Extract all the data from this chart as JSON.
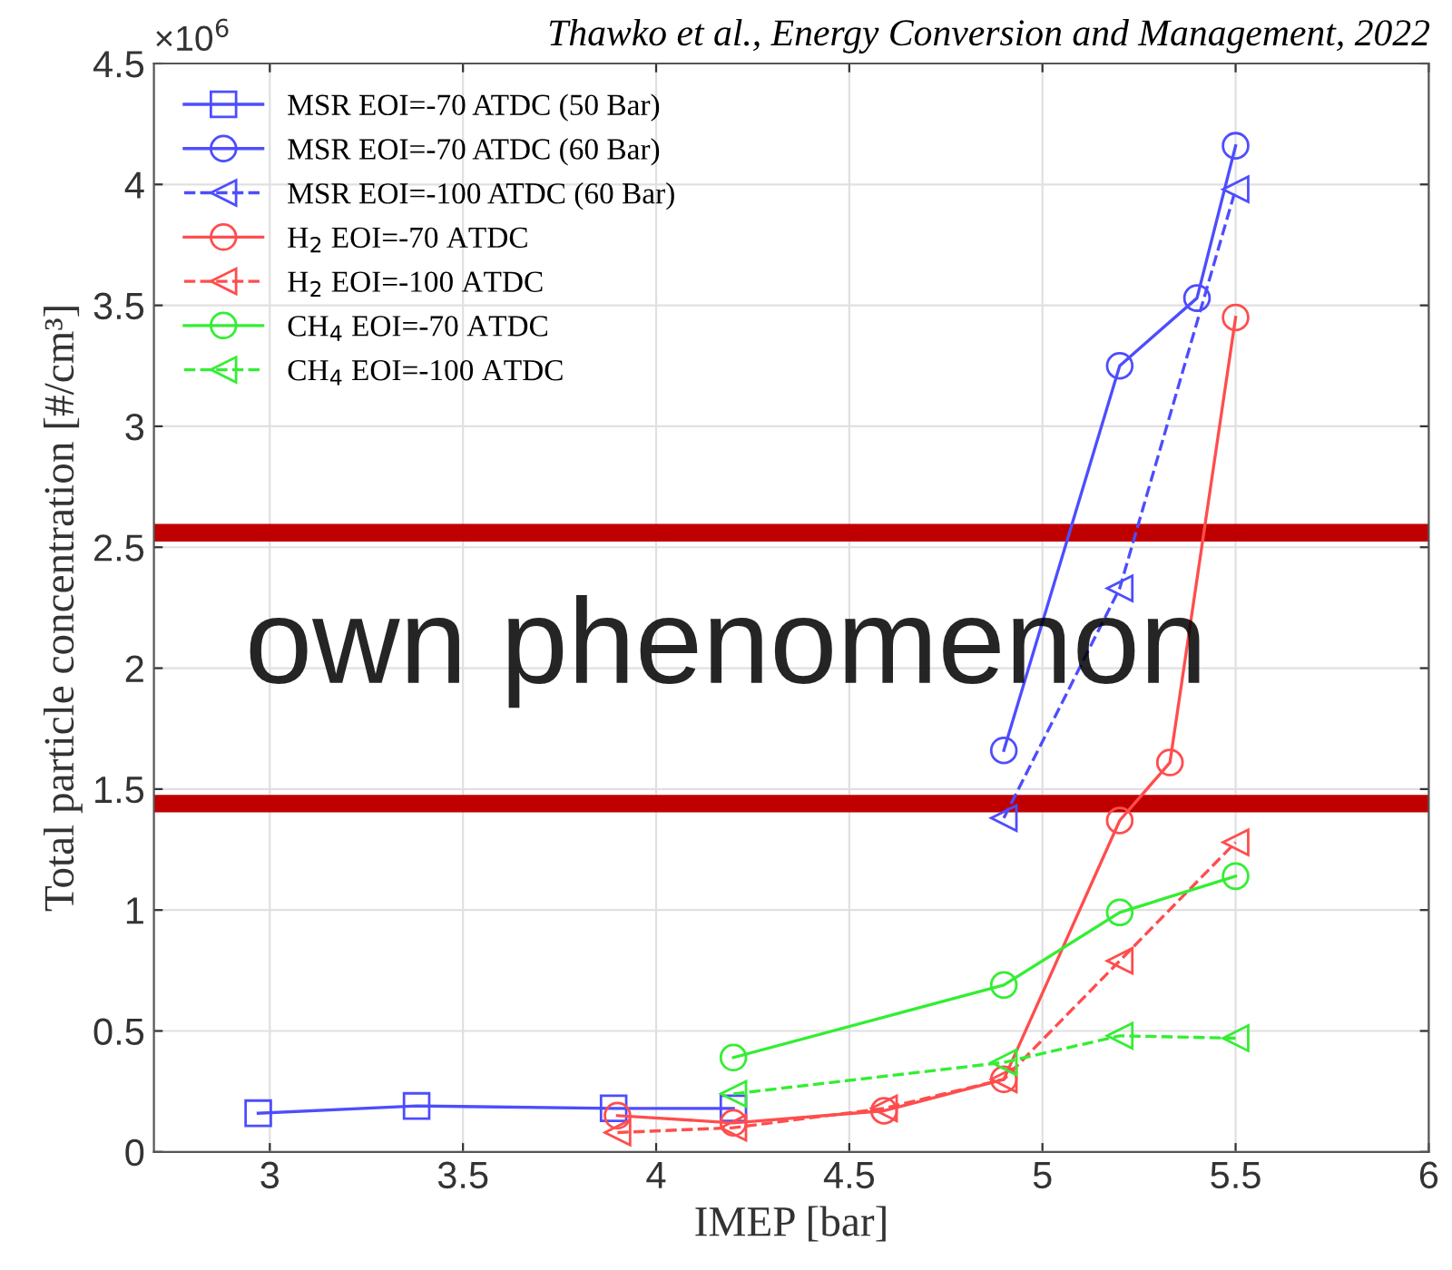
{
  "chart_data": {
    "type": "line",
    "title": "Thawko et al., Energy Conversion and Management, 2022",
    "xlabel": "IMEP [bar]",
    "ylabel": "Total particle concentration [#/cm³]",
    "xlim": [
      2.7,
      6
    ],
    "xticks": [
      3,
      3.5,
      4,
      4.5,
      5,
      5.5,
      6
    ],
    "ylim": [
      0,
      4.5
    ],
    "yticks": [
      0,
      0.5,
      1,
      1.5,
      2,
      2.5,
      3,
      3.5,
      4,
      4.5
    ],
    "grid": true,
    "legend": "top left",
    "annotations": [
      "×10$^{6}$",
      "own phenomenon"
    ],
    "ref_lines": [
      {
        "axis": "y",
        "value": 2.56,
        "color": "#c00000"
      },
      {
        "axis": "y",
        "value": 1.44,
        "color": "#c00000"
      }
    ],
    "series": [
      {
        "name": "MSR EOI=-70 ATDC (50 Bar)",
        "color": "#4d4dff",
        "marker": "square",
        "line_style": "solid",
        "x": [
          2.97,
          3.38,
          3.89,
          4.2
        ],
        "values": [
          0.16,
          0.19,
          0.18,
          0.18
        ]
      },
      {
        "name": "MSR EOI=-70 ATDC (60 Bar)",
        "color": "#4d4dff",
        "marker": "circle",
        "line_style": "solid",
        "x": [
          4.9,
          5.2,
          5.4,
          5.5
        ],
        "values": [
          1.66,
          3.25,
          3.53,
          4.16
        ]
      },
      {
        "name": "MSR EOI=-100 ATDC (60 Bar)",
        "color": "#4d4dff",
        "marker": "triangle",
        "line_style": "dashed",
        "x": [
          4.9,
          5.2,
          5.5
        ],
        "values": [
          1.38,
          2.33,
          3.98
        ]
      },
      {
        "name": "H$_{2}$ EOI=-70 ATDC",
        "color": "#ff4d4d",
        "marker": "circle",
        "line_style": "solid",
        "x": [
          3.9,
          4.2,
          4.59,
          4.9,
          5.2,
          5.33,
          5.5
        ],
        "values": [
          0.15,
          0.12,
          0.17,
          0.3,
          1.37,
          1.61,
          3.45
        ]
      },
      {
        "name": "H$_{2}$ EOI=-100 ATDC",
        "color": "#ff4d4d",
        "marker": "triangle",
        "line_style": "dashed",
        "x": [
          3.9,
          4.2,
          4.59,
          4.9,
          5.2,
          5.5
        ],
        "values": [
          0.08,
          0.1,
          0.18,
          0.3,
          0.79,
          1.28
        ]
      },
      {
        "name": "CH$_{4}$ EOI=-70 ATDC",
        "color": "#33ee33",
        "marker": "circle",
        "line_style": "solid",
        "x": [
          4.2,
          4.9,
          5.2,
          5.5
        ],
        "values": [
          0.39,
          0.69,
          0.99,
          1.14
        ]
      },
      {
        "name": "CH$_{4}$ EOI=-100 ATDC",
        "color": "#33ee33",
        "marker": "triangle",
        "line_style": "dashed",
        "x": [
          4.2,
          4.9,
          5.2,
          5.5
        ],
        "values": [
          0.24,
          0.37,
          0.48,
          0.47
        ]
      }
    ]
  }
}
